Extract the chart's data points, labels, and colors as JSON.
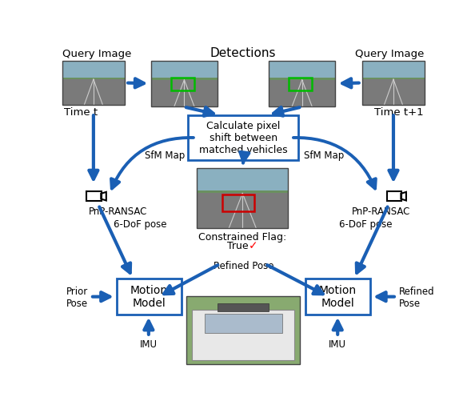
{
  "bg_color": "#ffffff",
  "arrow_color": "#1a5fb4",
  "box_color": "#1a5fb4",
  "box_fill": "#ffffff",
  "text_color": "#000000",
  "fig_width": 5.94,
  "fig_height": 5.16,
  "labels": {
    "query_image_left": "Query Image",
    "query_image_right": "Query Image",
    "time_t": "Time t",
    "time_t1": "Time t+1",
    "detections": "Detections",
    "sfm_left": "SfM Map",
    "sfm_right": "SfM Map",
    "pnp_left": "PnP-RANSAC",
    "pnp_right": "PnP-RANSAC",
    "calc_box": "Calculate pixel\nshift between\nmatched vehicles",
    "constrained_flag": "Constrained Flag:",
    "constrained_true": "True",
    "checkmark": "✓",
    "dof_left": "6-DoF pose",
    "dof_right": "6-DoF pose",
    "motion_left": "Motion\nModel",
    "motion_right": "Motion\nModel",
    "prior_pose": "Prior\nPose",
    "refined_pose": "Refined Pose",
    "refined_pose_right": "Refined\nPose",
    "imu_left": "IMU",
    "imu_right": "IMU"
  },
  "green_box_color": "#00bb00",
  "red_box_color": "#cc0000"
}
